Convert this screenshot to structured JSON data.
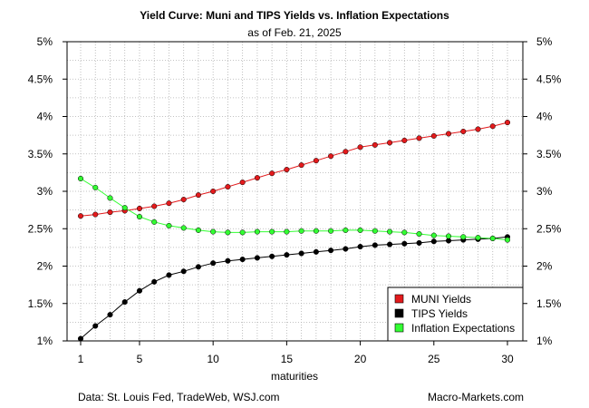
{
  "colors": {
    "muni": "#e31a1c",
    "tips": "#000000",
    "inflation": "#33ff33",
    "grid": "#b0b0b0"
  },
  "footer": {
    "source": "Data: St. Louis Fed, TradeWeb, WSJ.com",
    "site": "Macro-Markets.com"
  },
  "chart_data": {
    "type": "line",
    "title": "Yield Curve: Muni and TIPS Yields vs. Inflation Expectations",
    "subtitle": "as of Feb. 21, 2025",
    "xlabel": "maturities",
    "ylabel": "",
    "xlim": [
      1,
      30
    ],
    "ylim": [
      1,
      5
    ],
    "x_ticks": [
      1,
      5,
      10,
      15,
      20,
      25,
      30
    ],
    "y_ticks": [
      1,
      1.5,
      2,
      2.5,
      3,
      3.5,
      4,
      4.5,
      5
    ],
    "y_tick_labels": [
      "1%",
      "1.5%",
      "2%",
      "2.5%",
      "3%",
      "3.5%",
      "4%",
      "4.5%",
      "5%"
    ],
    "grid": true,
    "legend_position": "bottom-right",
    "x": [
      1,
      2,
      3,
      4,
      5,
      6,
      7,
      8,
      9,
      10,
      11,
      12,
      13,
      14,
      15,
      16,
      17,
      18,
      19,
      20,
      21,
      22,
      23,
      24,
      25,
      26,
      27,
      28,
      29,
      30
    ],
    "series": [
      {
        "name": "MUNI Yields",
        "color": "#e31a1c",
        "values": [
          2.67,
          2.69,
          2.72,
          2.74,
          2.77,
          2.8,
          2.84,
          2.89,
          2.95,
          3.0,
          3.06,
          3.12,
          3.18,
          3.24,
          3.29,
          3.35,
          3.41,
          3.47,
          3.53,
          3.59,
          3.62,
          3.65,
          3.68,
          3.71,
          3.74,
          3.77,
          3.8,
          3.83,
          3.87,
          3.92
        ]
      },
      {
        "name": "TIPS Yields",
        "color": "#000000",
        "values": [
          1.03,
          1.2,
          1.35,
          1.52,
          1.67,
          1.79,
          1.88,
          1.93,
          1.99,
          2.04,
          2.07,
          2.09,
          2.11,
          2.13,
          2.15,
          2.17,
          2.19,
          2.21,
          2.23,
          2.26,
          2.28,
          2.29,
          2.3,
          2.31,
          2.33,
          2.34,
          2.35,
          2.36,
          2.37,
          2.39
        ]
      },
      {
        "name": "Inflation Expectations",
        "color": "#33ff33",
        "values": [
          3.17,
          3.05,
          2.91,
          2.78,
          2.66,
          2.59,
          2.54,
          2.51,
          2.48,
          2.46,
          2.45,
          2.45,
          2.46,
          2.46,
          2.46,
          2.47,
          2.47,
          2.47,
          2.48,
          2.48,
          2.47,
          2.46,
          2.45,
          2.43,
          2.41,
          2.4,
          2.39,
          2.38,
          2.37,
          2.35
        ]
      }
    ]
  }
}
